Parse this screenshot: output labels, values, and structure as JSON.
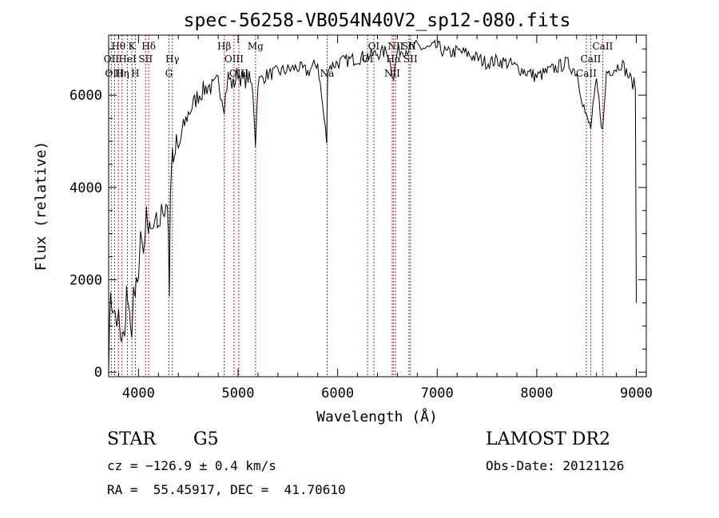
{
  "chart_data": {
    "type": "line",
    "title": "spec-56258-VB054N40V2_sp12-080.fits",
    "xlabel": "Wavelength (Å)",
    "ylabel": "Flux (relative)",
    "xlim": [
      3700,
      9100
    ],
    "ylim": [
      -100,
      7300
    ],
    "x_ticks": [
      4000,
      5000,
      6000,
      7000,
      8000,
      9000
    ],
    "y_ticks": [
      0,
      2000,
      4000,
      6000
    ],
    "series": [
      {
        "name": "flux",
        "x": [
          3700,
          3720,
          3740,
          3760,
          3780,
          3800,
          3820,
          3840,
          3860,
          3880,
          3900,
          3920,
          3933,
          3950,
          3968,
          3980,
          4000,
          4020,
          4050,
          4080,
          4100,
          4120,
          4150,
          4180,
          4200,
          4230,
          4260,
          4290,
          4300,
          4310,
          4320,
          4340,
          4360,
          4380,
          4400,
          4450,
          4500,
          4550,
          4600,
          4650,
          4700,
          4750,
          4800,
          4861,
          4900,
          4950,
          5000,
          5050,
          5100,
          5150,
          5175,
          5200,
          5300,
          5400,
          5500,
          5600,
          5700,
          5800,
          5890,
          5900,
          6000,
          6100,
          6200,
          6300,
          6400,
          6500,
          6563,
          6600,
          6700,
          6800,
          6900,
          7000,
          7100,
          7200,
          7300,
          7400,
          7500,
          7600,
          7700,
          7800,
          7900,
          8000,
          8100,
          8200,
          8300,
          8400,
          8498,
          8542,
          8600,
          8662,
          8700,
          8800,
          8850,
          8900,
          8950,
          8990,
          9000
        ],
        "y": [
          200,
          1800,
          1200,
          1400,
          900,
          1300,
          600,
          900,
          700,
          1800,
          1300,
          1100,
          600,
          1800,
          1500,
          2100,
          1900,
          3200,
          2600,
          3400,
          2900,
          3300,
          3100,
          3500,
          3000,
          3700,
          3300,
          3600,
          3100,
          1700,
          3900,
          4800,
          4500,
          5000,
          4800,
          5300,
          5600,
          5800,
          6000,
          6100,
          6200,
          6150,
          6300,
          5800,
          6400,
          6200,
          6500,
          6300,
          6400,
          6100,
          5000,
          6300,
          6450,
          6500,
          6550,
          6600,
          6500,
          6700,
          5000,
          6600,
          6700,
          6750,
          6800,
          6850,
          6900,
          6950,
          6400,
          6950,
          7000,
          7050,
          7000,
          7050,
          6900,
          6950,
          6900,
          6800,
          6700,
          6750,
          6700,
          6600,
          6500,
          6400,
          6500,
          6600,
          6700,
          6500,
          5500,
          5300,
          6300,
          5200,
          6500,
          6600,
          6700,
          6500,
          6300,
          6200,
          1500
        ]
      }
    ],
    "lines": [
      {
        "label": "Hθ",
        "w": 3798,
        "row": 1
      },
      {
        "label": "K",
        "w": 3934,
        "row": 1
      },
      {
        "label": "Hδ",
        "w": 4102,
        "row": 1
      },
      {
        "label": "OII",
        "w": 3727,
        "row": 2
      },
      {
        "label": "HeI",
        "w": 3889,
        "row": 2
      },
      {
        "label": "SII",
        "w": 4071,
        "row": 2
      },
      {
        "label": "Hγ",
        "w": 4340,
        "row": 2
      },
      {
        "label": "OIII",
        "w": 3760,
        "row": 3
      },
      {
        "label": "Hη",
        "w": 3835,
        "row": 3
      },
      {
        "label": "H",
        "w": 3968,
        "row": 3
      },
      {
        "label": "G",
        "w": 4305,
        "row": 3
      },
      {
        "label": "Hβ",
        "w": 4861,
        "row": 1
      },
      {
        "label": "Mg",
        "w": 5175,
        "row": 1
      },
      {
        "label": "OIII",
        "w": 4959,
        "row": 2
      },
      {
        "label": "OIII",
        "w": 5007,
        "row": 3
      },
      {
        "label": "Na",
        "w": 5894,
        "row": 3
      },
      {
        "label": "OI",
        "w": 6363,
        "row": 1
      },
      {
        "label": "NII",
        "w": 6583,
        "row": 1
      },
      {
        "label": "SII",
        "w": 6716,
        "row": 1
      },
      {
        "label": "OI",
        "w": 6300,
        "row": 2
      },
      {
        "label": "Hα",
        "w": 6563,
        "row": 2
      },
      {
        "label": "SII",
        "w": 6731,
        "row": 2
      },
      {
        "label": "NII",
        "w": 6548,
        "row": 3
      },
      {
        "label": "CaII",
        "w": 8662,
        "row": 1
      },
      {
        "label": "CaII",
        "w": 8542,
        "row": 2
      },
      {
        "label": "CaII",
        "w": 8498,
        "row": 3
      }
    ]
  },
  "info": {
    "object_class": "STAR",
    "subclass": "G5",
    "survey": "LAMOST DR2",
    "cz": "cz = −126.9 ± 0.4 km/s",
    "obs_date": "Obs-Date: 20121126",
    "coords": "RA =  55.45917, DEC =  41.70610"
  }
}
